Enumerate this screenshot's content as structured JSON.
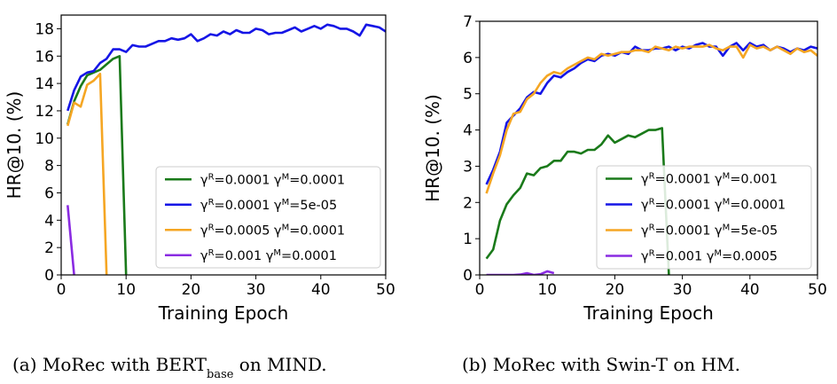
{
  "chart_data": [
    {
      "type": "line",
      "panel": "a",
      "caption": "(a)  MoRec with BERT",
      "caption_sub": "base",
      "caption_tail": " on MIND.",
      "xlabel": "Training Epoch",
      "ylabel": "HR@10. (%)",
      "xlim": [
        0,
        50
      ],
      "ylim": [
        0,
        19
      ],
      "xticks": [
        0,
        10,
        20,
        30,
        40,
        50
      ],
      "yticks": [
        0,
        2,
        4,
        6,
        8,
        10,
        12,
        14,
        16,
        18
      ],
      "legend": "lower-right",
      "series": [
        {
          "name": "γR=0.0001 γM=0.0001",
          "legend_parts": [
            "γ",
            "R",
            "=0.0001 γ",
            "M",
            "=0.0001"
          ],
          "color": "#1a7a1a",
          "x": [
            1,
            2,
            3,
            4,
            5,
            6,
            7,
            8,
            9,
            10
          ],
          "y": [
            11.0,
            12.7,
            13.8,
            14.6,
            14.8,
            15.0,
            15.4,
            15.8,
            16.0,
            0.0
          ]
        },
        {
          "name": "γR=0.0001 γM=5e-05",
          "legend_parts": [
            "γ",
            "R",
            "=0.0001 γ",
            "M",
            "=5e-05"
          ],
          "color": "#1515e6",
          "x": [
            1,
            2,
            3,
            4,
            5,
            6,
            7,
            8,
            9,
            10,
            11,
            12,
            13,
            14,
            15,
            16,
            17,
            18,
            19,
            20,
            21,
            22,
            23,
            24,
            25,
            26,
            27,
            28,
            29,
            30,
            31,
            32,
            33,
            34,
            35,
            36,
            37,
            38,
            39,
            40,
            41,
            42,
            43,
            44,
            45,
            46,
            47,
            48,
            49,
            50
          ],
          "y": [
            12.0,
            13.5,
            14.5,
            14.8,
            14.9,
            15.5,
            15.8,
            16.5,
            16.5,
            16.3,
            16.8,
            16.7,
            16.7,
            16.9,
            17.1,
            17.1,
            17.3,
            17.2,
            17.3,
            17.6,
            17.1,
            17.3,
            17.6,
            17.5,
            17.8,
            17.6,
            17.9,
            17.7,
            17.7,
            18.0,
            17.9,
            17.6,
            17.7,
            17.7,
            17.9,
            18.1,
            17.8,
            18.0,
            18.2,
            18.0,
            18.3,
            18.2,
            18.0,
            18.0,
            17.8,
            17.5,
            18.3,
            18.2,
            18.1,
            17.8
          ]
        },
        {
          "name": "γR=0.0005 γM=0.0001",
          "legend_parts": [
            "γ",
            "R",
            "=0.0005 γ",
            "M",
            "=0.0001"
          ],
          "color": "#f5a623",
          "x": [
            1,
            2,
            3,
            4,
            5,
            6,
            7
          ],
          "y": [
            10.9,
            12.6,
            12.3,
            13.9,
            14.2,
            14.7,
            0.0
          ]
        },
        {
          "name": "γR=0.001 γM=0.0001",
          "legend_parts": [
            "γ",
            "R",
            "=0.001 γ",
            "M",
            "=0.0001"
          ],
          "color": "#8a2be2",
          "x": [
            1,
            2
          ],
          "y": [
            5.1,
            0.0
          ]
        }
      ]
    },
    {
      "type": "line",
      "panel": "b",
      "caption": "(b)  MoRec with Swin-T on HM.",
      "xlabel": "Training Epoch",
      "ylabel": "HR@10. (%)",
      "xlim": [
        0,
        50
      ],
      "ylim": [
        0,
        7
      ],
      "xticks": [
        0,
        10,
        20,
        30,
        40,
        50
      ],
      "yticks": [
        0,
        1,
        2,
        3,
        4,
        5,
        6,
        7
      ],
      "legend": "lower-right",
      "series": [
        {
          "name": "γR=0.0001 γM=0.001",
          "legend_parts": [
            "γ",
            "R",
            "=0.0001 γ",
            "M",
            "=0.001"
          ],
          "color": "#1a7a1a",
          "x": [
            1,
            2,
            3,
            4,
            5,
            6,
            7,
            8,
            9,
            10,
            11,
            12,
            13,
            14,
            15,
            16,
            17,
            18,
            19,
            20,
            21,
            22,
            23,
            24,
            25,
            26,
            27,
            28
          ],
          "y": [
            0.45,
            0.7,
            1.5,
            1.95,
            2.2,
            2.4,
            2.8,
            2.75,
            2.95,
            3.0,
            3.15,
            3.15,
            3.4,
            3.4,
            3.35,
            3.45,
            3.45,
            3.6,
            3.85,
            3.65,
            3.75,
            3.85,
            3.8,
            3.9,
            4.0,
            4.0,
            4.05,
            0.0
          ]
        },
        {
          "name": "γR=0.0001 γM=0.0001",
          "legend_parts": [
            "γ",
            "R",
            "=0.0001 γ",
            "M",
            "=0.0001"
          ],
          "color": "#1515e6",
          "x": [
            1,
            2,
            3,
            4,
            5,
            6,
            7,
            8,
            9,
            10,
            11,
            12,
            13,
            14,
            15,
            16,
            17,
            18,
            19,
            20,
            21,
            22,
            23,
            24,
            25,
            26,
            27,
            28,
            29,
            30,
            31,
            32,
            33,
            34,
            35,
            36,
            37,
            38,
            39,
            40,
            41,
            42,
            43,
            44,
            45,
            46,
            47,
            48,
            49,
            50
          ],
          "y": [
            2.5,
            2.9,
            3.4,
            4.2,
            4.4,
            4.6,
            4.9,
            5.05,
            5.0,
            5.3,
            5.5,
            5.45,
            5.6,
            5.7,
            5.85,
            5.95,
            5.9,
            6.05,
            6.1,
            6.05,
            6.15,
            6.1,
            6.3,
            6.2,
            6.2,
            6.25,
            6.25,
            6.3,
            6.2,
            6.3,
            6.25,
            6.35,
            6.4,
            6.3,
            6.3,
            6.05,
            6.3,
            6.4,
            6.2,
            6.4,
            6.3,
            6.35,
            6.2,
            6.3,
            6.25,
            6.15,
            6.25,
            6.2,
            6.3,
            6.25
          ]
        },
        {
          "name": "γR=0.0001 γM=5e-05",
          "legend_parts": [
            "γ",
            "R",
            "=0.0001 γ",
            "M",
            "=5e-05"
          ],
          "color": "#f5a623",
          "x": [
            1,
            2,
            3,
            4,
            5,
            6,
            7,
            8,
            9,
            10,
            11,
            12,
            13,
            14,
            15,
            16,
            17,
            18,
            19,
            20,
            21,
            22,
            23,
            24,
            25,
            26,
            27,
            28,
            29,
            30,
            31,
            32,
            33,
            34,
            35,
            36,
            37,
            38,
            39,
            40,
            41,
            42,
            43,
            44,
            45,
            46,
            47,
            48,
            49,
            50
          ],
          "y": [
            2.25,
            2.8,
            3.3,
            4.0,
            4.45,
            4.5,
            4.85,
            5.0,
            5.3,
            5.5,
            5.6,
            5.55,
            5.7,
            5.8,
            5.9,
            6.0,
            5.95,
            6.1,
            6.05,
            6.1,
            6.15,
            6.15,
            6.2,
            6.2,
            6.15,
            6.3,
            6.25,
            6.2,
            6.3,
            6.25,
            6.3,
            6.3,
            6.3,
            6.35,
            6.25,
            6.2,
            6.3,
            6.3,
            6.0,
            6.35,
            6.25,
            6.3,
            6.2,
            6.3,
            6.2,
            6.1,
            6.25,
            6.15,
            6.2,
            6.05
          ]
        },
        {
          "name": "γR=0.001 γM=0.0005",
          "legend_parts": [
            "γ",
            "R",
            "=0.001 γ",
            "M",
            "=0.0005"
          ],
          "color": "#8a2be2",
          "x": [
            1,
            2,
            3,
            4,
            5,
            6,
            7,
            8,
            9,
            10,
            11
          ],
          "y": [
            0.0,
            0.0,
            0.0,
            0.0,
            0.0,
            0.01,
            0.05,
            0.0,
            0.02,
            0.1,
            0.05
          ]
        }
      ]
    }
  ]
}
